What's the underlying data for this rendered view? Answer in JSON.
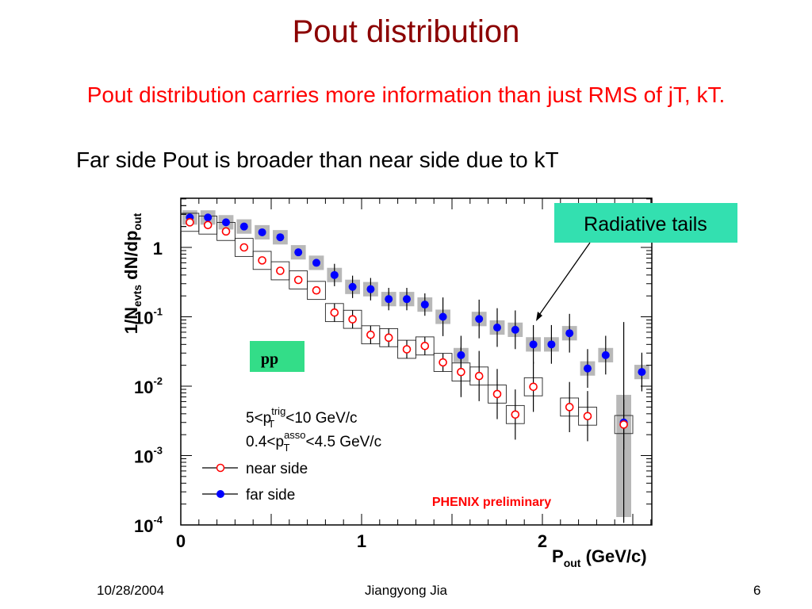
{
  "slide": {
    "title": "Pout distribution",
    "subtitle": "Pout distribution carries more information than just RMS of jT, kT.",
    "caption": "Far side Pout is broader than near side due to kT",
    "footer": {
      "date": "10/28/2004",
      "author": "Jiangyong Jia",
      "page": "6"
    }
  },
  "colors": {
    "title": "#8b0000",
    "subtitle": "#ff0000",
    "near": "#ff0000",
    "far": "#0000ff",
    "annotation_box": "#33e0b0",
    "pp_box": "#33dd88",
    "phenix": "#ff0000"
  },
  "chart_data": {
    "type": "scatter",
    "xlabel": "P_out (GeV/c)",
    "ylabel": "1/N_evts dN/dp_out",
    "xlim": [
      0,
      2.6
    ],
    "ylim": [
      0.0001,
      4
    ],
    "yscale": "log",
    "x_ticks": [
      "0",
      "1",
      "2"
    ],
    "y_ticks": [
      "1",
      "10^-1",
      "10^-2",
      "10^-3",
      "10^-4"
    ],
    "legend_placement": "bottom-left",
    "annotations": {
      "radiative_tails": "Radiative tails",
      "pp": "pp",
      "phenix": "PHENIX preliminary",
      "cut1": "5<p_T^trig<10 GeV/c",
      "cut2": "0.4<p_T^asso<4.5 GeV/c"
    },
    "series": [
      {
        "name": "near side",
        "marker": "open-circle",
        "x": [
          0.05,
          0.15,
          0.25,
          0.35,
          0.45,
          0.55,
          0.65,
          0.75,
          0.85,
          0.95,
          1.05,
          1.15,
          1.25,
          1.35,
          1.45,
          1.55,
          1.65,
          1.75,
          1.85,
          1.95,
          2.15,
          2.25,
          2.45
        ],
        "y": [
          2.3,
          2.1,
          1.7,
          1.0,
          0.65,
          0.46,
          0.34,
          0.24,
          0.115,
          0.092,
          0.055,
          0.05,
          0.034,
          0.038,
          0.022,
          0.016,
          0.014,
          0.0077,
          0.0039,
          0.0098,
          0.005,
          0.0037,
          0.0028
        ]
      },
      {
        "name": "far side",
        "marker": "filled-circle",
        "x": [
          0.05,
          0.15,
          0.25,
          0.35,
          0.45,
          0.55,
          0.65,
          0.75,
          0.85,
          0.95,
          1.05,
          1.15,
          1.25,
          1.35,
          1.45,
          1.55,
          1.65,
          1.75,
          1.85,
          1.95,
          2.05,
          2.15,
          2.25,
          2.35,
          2.55
        ],
        "y": [
          2.7,
          2.7,
          2.3,
          2.0,
          1.65,
          1.4,
          0.85,
          0.6,
          0.4,
          0.27,
          0.25,
          0.18,
          0.18,
          0.15,
          0.1,
          0.028,
          0.093,
          0.07,
          0.065,
          0.04,
          0.04,
          0.058,
          0.018,
          0.028,
          0.016
        ]
      },
      {
        "name": "",
        "marker": "filled-circle",
        "x": [
          2.45
        ],
        "y": [
          0.003
        ]
      }
    ]
  }
}
